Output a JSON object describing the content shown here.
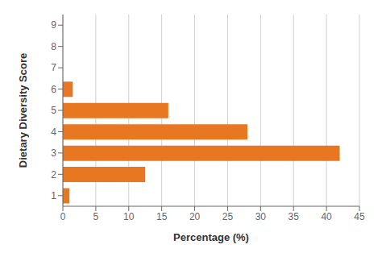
{
  "chart_data": {
    "type": "bar",
    "orientation": "horizontal",
    "categories": [
      "1",
      "2",
      "3",
      "4",
      "5",
      "6",
      "7",
      "8",
      "9"
    ],
    "values": [
      1.0,
      12.5,
      42.0,
      28.0,
      16.0,
      1.5,
      0,
      0,
      0
    ],
    "color": "#E87722",
    "xlabel": "Percentage (%)",
    "ylabel": "Dietary Diversity Score",
    "xlim": [
      0,
      45
    ],
    "xticks": [
      0,
      5,
      10,
      15,
      20,
      25,
      30,
      35,
      40,
      45
    ],
    "grid": true
  }
}
